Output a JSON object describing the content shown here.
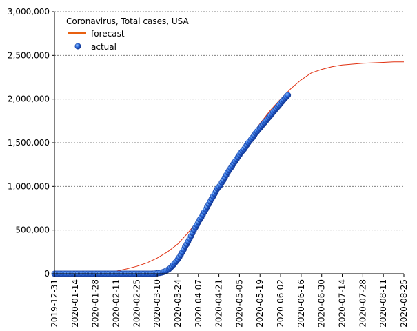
{
  "chart_data": {
    "type": "line",
    "title": "Coronavirus, Total cases, USA",
    "xlabel": "",
    "ylabel": "",
    "x_ticks": [
      "2019-12-31",
      "2020-01-14",
      "2020-01-28",
      "2020-02-11",
      "2020-02-25",
      "2020-03-10",
      "2020-03-24",
      "2020-04-07",
      "2020-04-21",
      "2020-05-05",
      "2020-05-19",
      "2020-06-02",
      "2020-06-16",
      "2020-06-30",
      "2020-07-14",
      "2020-07-28",
      "2020-08-11",
      "2020-08-25"
    ],
    "xlim": [
      "2019-12-31",
      "2020-08-25"
    ],
    "ylim": [
      0,
      3000000
    ],
    "y_ticks": [
      0,
      500000,
      1000000,
      1500000,
      2000000,
      2500000,
      3000000
    ],
    "y_tick_labels": [
      "0",
      "500,000",
      "1,000,000",
      "1,500,000",
      "2,000,000",
      "2,500,000",
      "3,000,000"
    ],
    "grid": "horizontal dashed",
    "legend_position": "top-left",
    "series": [
      {
        "name": "forecast",
        "style": "line",
        "color": "#e03010",
        "x": [
          "2019-12-31",
          "2020-01-21",
          "2020-02-04",
          "2020-02-11",
          "2020-02-18",
          "2020-02-25",
          "2020-03-03",
          "2020-03-10",
          "2020-03-17",
          "2020-03-24",
          "2020-03-31",
          "2020-04-07",
          "2020-04-14",
          "2020-04-21",
          "2020-04-28",
          "2020-05-05",
          "2020-05-12",
          "2020-05-19",
          "2020-05-26",
          "2020-06-02",
          "2020-06-09",
          "2020-06-16",
          "2020-06-23",
          "2020-06-30",
          "2020-07-07",
          "2020-07-14",
          "2020-07-21",
          "2020-07-28",
          "2020-08-04",
          "2020-08-11",
          "2020-08-18",
          "2020-08-25"
        ],
        "y": [
          0,
          5000,
          15000,
          30000,
          55000,
          85000,
          125000,
          180000,
          250000,
          340000,
          470000,
          620000,
          780000,
          970000,
          1170000,
          1370000,
          1550000,
          1720000,
          1870000,
          2000000,
          2120000,
          2220000,
          2300000,
          2340000,
          2370000,
          2390000,
          2400000,
          2410000,
          2415000,
          2420000,
          2425000,
          2425000
        ]
      },
      {
        "name": "actual",
        "style": "points",
        "color": "#1f4fc8",
        "start_date": "2019-12-31",
        "end_date": "2020-06-14",
        "values": [
          0,
          0,
          0,
          0,
          0,
          0,
          0,
          0,
          0,
          0,
          0,
          0,
          0,
          0,
          0,
          0,
          0,
          0,
          0,
          0,
          0,
          0,
          0,
          0,
          0,
          0,
          0,
          0,
          0,
          0,
          0,
          0,
          0,
          0,
          0,
          0,
          0,
          0,
          0,
          0,
          0,
          0,
          0,
          0,
          0,
          0,
          0,
          0,
          0,
          0,
          0,
          0,
          0,
          0,
          0,
          0,
          0,
          0,
          0,
          0,
          0,
          0,
          0,
          0,
          0,
          0,
          0,
          1000,
          2000,
          3000,
          5000,
          8000,
          10000,
          14000,
          19000,
          25000,
          33000,
          43000,
          53000,
          68000,
          85000,
          103000,
          124000,
          143000,
          164000,
          189000,
          216000,
          245000,
          277000,
          311000,
          337000,
          367000,
          399000,
          432000,
          466000,
          500000,
          530000,
          560000,
          590000,
          620000,
          645000,
          675000,
          705000,
          735000,
          765000,
          795000,
          825000,
          855000,
          885000,
          915000,
          945000,
          975000,
          995000,
          1015000,
          1045000,
          1070000,
          1100000,
          1130000,
          1160000,
          1185000,
          1210000,
          1235000,
          1260000,
          1285000,
          1310000,
          1335000,
          1360000,
          1385000,
          1405000,
          1425000,
          1450000,
          1475000,
          1500000,
          1520000,
          1540000,
          1560000,
          1585000,
          1610000,
          1630000,
          1650000,
          1670000,
          1690000,
          1710000,
          1730000,
          1750000,
          1770000,
          1790000,
          1810000,
          1830000,
          1850000,
          1870000,
          1890000,
          1910000,
          1930000,
          1950000,
          1970000,
          1990000,
          2010000,
          2025000,
          2045000
        ]
      }
    ]
  }
}
